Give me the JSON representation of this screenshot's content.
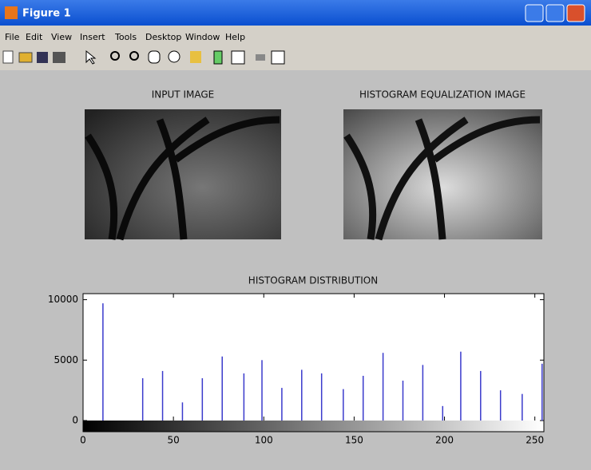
{
  "window": {
    "title": "Figure 1",
    "menu": [
      "File",
      "Edit",
      "View",
      "Insert",
      "Tools",
      "Desktop",
      "Window",
      "Help"
    ]
  },
  "images": [
    {
      "title": "INPUT IMAGE"
    },
    {
      "title": "HISTOGRAM EQUALIZATION IMAGE"
    }
  ],
  "chart_data": {
    "type": "stem",
    "title": "HISTOGRAM DISTRIBUTION",
    "x": [
      11,
      33,
      44,
      55,
      66,
      77,
      89,
      99,
      110,
      121,
      132,
      144,
      155,
      166,
      177,
      188,
      199,
      209,
      220,
      231,
      243,
      254
    ],
    "values": [
      9700,
      3500,
      4100,
      1500,
      3500,
      5300,
      3900,
      5000,
      2700,
      4200,
      3900,
      2600,
      3700,
      5600,
      3300,
      4600,
      1200,
      5700,
      4100,
      2500,
      2200,
      4700
    ],
    "color": "#3a3acc",
    "xlim": [
      0,
      255
    ],
    "ylim": [
      0,
      10500
    ],
    "xticks": [
      0,
      50,
      100,
      150,
      200,
      250
    ],
    "yticks": [
      0,
      5000,
      10000
    ],
    "grid": false
  }
}
